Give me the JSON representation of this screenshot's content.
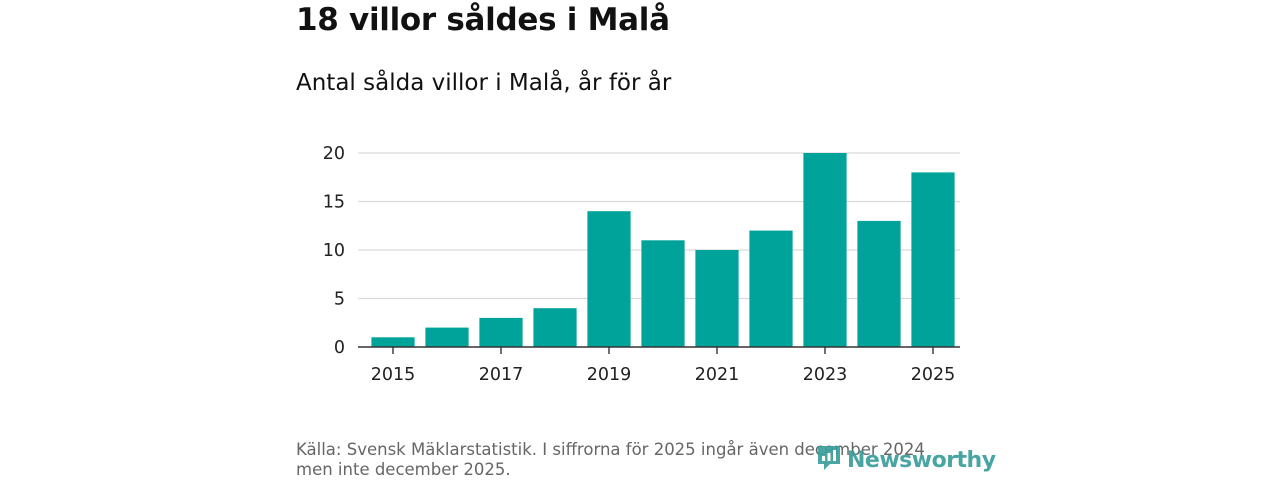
{
  "title": "18 villor såldes i Malå",
  "subtitle": "Antal sålda villor i Malå, år för år",
  "source_line1": "Källa: Svensk Mäklarstatistik. I siffrorna för 2025 ingår även december 2024",
  "source_line2": "men inte december 2025.",
  "logo_text": "Newsworthy",
  "colors": {
    "bar": "#00a39a",
    "grid": "#d9d9d9",
    "axis": "#333333",
    "logo": "#3a9e9b"
  },
  "chart_data": {
    "type": "bar",
    "title": "18 villor såldes i Malå",
    "subtitle": "Antal sålda villor i Malå, år för år",
    "xlabel": "",
    "ylabel": "",
    "categories": [
      "2015",
      "2016",
      "2017",
      "2018",
      "2019",
      "2020",
      "2021",
      "2022",
      "2023",
      "2024",
      "2025"
    ],
    "values": [
      1,
      2,
      3,
      4,
      14,
      11,
      10,
      12,
      20,
      13,
      18
    ],
    "x_tick_labels": [
      "2015",
      "2017",
      "2019",
      "2021",
      "2023",
      "2025"
    ],
    "y_ticks": [
      0,
      5,
      10,
      15,
      20
    ],
    "ylim": [
      0,
      20
    ],
    "grid": true,
    "legend": "none"
  }
}
